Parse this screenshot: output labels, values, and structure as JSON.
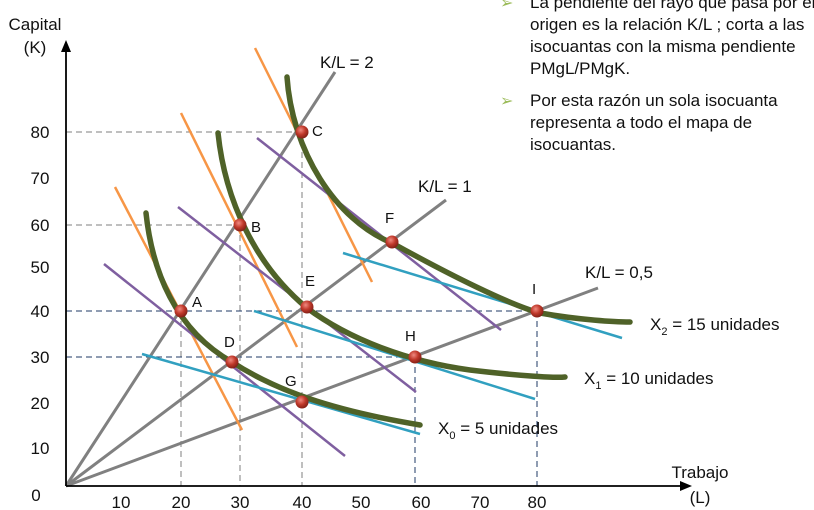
{
  "axes": {
    "y_label_line1": "Capital",
    "y_label_line2": "(K)",
    "x_label_line1": "Trabajo",
    "x_label_line2": "(L)",
    "origin_label": "0",
    "x_ticks": [
      "10",
      "20",
      "30",
      "40",
      "50",
      "60",
      "70",
      "80"
    ],
    "y_ticks": [
      "10",
      "20",
      "30",
      "40",
      "50",
      "60",
      "70",
      "80"
    ]
  },
  "rays": [
    {
      "label": "K/L = 2"
    },
    {
      "label": "K/L = 1"
    },
    {
      "label": "K/L = 0,5"
    }
  ],
  "isoquants": [
    {
      "label": "X",
      "sub": "0",
      "rest": " = 5 unidades"
    },
    {
      "label": "X",
      "sub": "1",
      "rest": " = 10 unidades"
    },
    {
      "label": "X",
      "sub": "2",
      "rest": " = 15 unidades"
    }
  ],
  "points": [
    {
      "label": "A",
      "x": 20,
      "y": 40
    },
    {
      "label": "B",
      "x": 30,
      "y": 60
    },
    {
      "label": "C",
      "x": 40,
      "y": 80
    },
    {
      "label": "D",
      "x": 30,
      "y": 29
    },
    {
      "label": "E",
      "x": 41,
      "y": 41
    },
    {
      "label": "F",
      "x": 56,
      "y": 56
    },
    {
      "label": "G",
      "x": 40,
      "y": 20
    },
    {
      "label": "H",
      "x": 60,
      "y": 29
    },
    {
      "label": "I",
      "x": 80,
      "y": 40
    }
  ],
  "bullets": [
    "La pendiente del rayo que pasa por el origen es la relación K/L ; corta a las isocuantas con la misma pendiente PMgL/PMgK.",
    "Por esta razón un sola isocuanta representa a todo el mapa de isocuantas."
  ],
  "colors": {
    "isoquant": "#4f6228",
    "ray": "#808080",
    "orange": "#f79646",
    "purple": "#7f5fa0",
    "cyan": "#31a0c0",
    "guide": "#7f7f7f",
    "guide_blue": "#1f3864",
    "point": "#c0392b",
    "bullet_arrow": "#9bbb59"
  }
}
